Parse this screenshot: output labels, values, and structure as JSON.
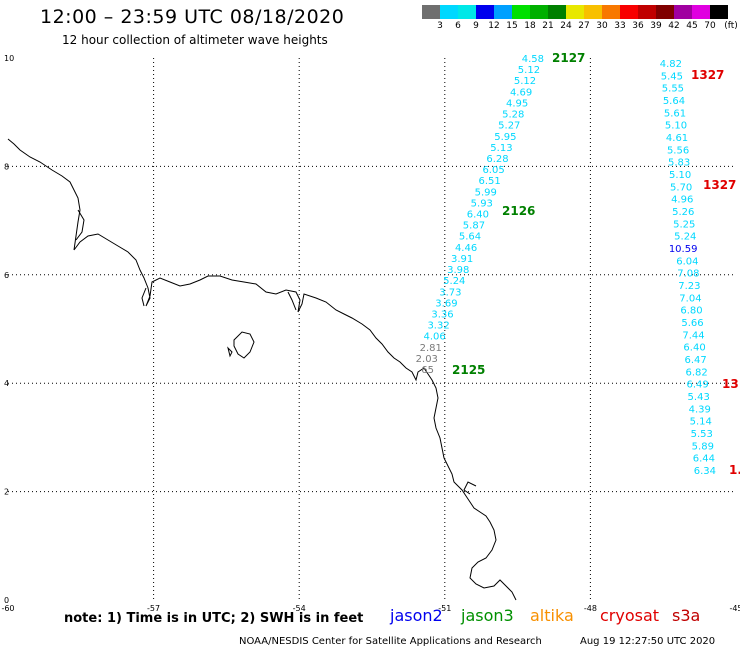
{
  "header": {
    "title": "12:00 – 23:59 UTC 08/18/2020",
    "subtitle": "12 hour collection of altimeter wave heights"
  },
  "scale": {
    "unit": "(ft)",
    "labels": [
      "3",
      "6",
      "9",
      "12",
      "15",
      "18",
      "21",
      "24",
      "27",
      "30",
      "33",
      "36",
      "39",
      "42",
      "45",
      "70"
    ],
    "colors": [
      "#6f6f6f",
      "#00d8ff",
      "#00e8e8",
      "#0000ee",
      "#00a0ff",
      "#00e000",
      "#00b000",
      "#008000",
      "#e8e800",
      "#f8c000",
      "#f87800",
      "#f80000",
      "#c00000",
      "#800000",
      "#a000a0",
      "#e000e0",
      "#000000"
    ]
  },
  "axes": {
    "x_ticks": [
      "-60",
      "-57",
      "-54",
      "-51",
      "-48",
      "-45"
    ],
    "y_ticks": [
      "0",
      "2",
      "4",
      "6",
      "8",
      "10"
    ]
  },
  "tracks": [
    {
      "name": "jason3",
      "color": "#00d8ff",
      "labels": [
        {
          "text": "2127",
          "color": "#008000"
        },
        {
          "text": "2126",
          "color": "#008000"
        },
        {
          "text": "2125",
          "color": "#008000"
        }
      ],
      "values": [
        "4.58",
        "5.12",
        "5.12",
        "4.69",
        "4.95",
        "5.28",
        "5.27",
        "5.95",
        "5.13",
        "6.28",
        "6.05",
        "6.51",
        "5.99",
        "5.93",
        "6.40",
        "5.87",
        "5.64",
        "4.46",
        "3.91",
        "3.98",
        "5.24",
        "3.73",
        "3.69",
        "3.36",
        "3.32",
        "4.06",
        "2.81",
        "2.03",
        "65"
      ]
    },
    {
      "name": "cryosat",
      "color": "#00d8ff",
      "labels": [
        {
          "text": "1327",
          "color": "#e00000"
        },
        {
          "text": "1327",
          "color": "#e00000"
        },
        {
          "text": "13",
          "color": "#e00000"
        },
        {
          "text": "1.",
          "color": "#e00000"
        }
      ],
      "values": [
        "4.82",
        "5.45",
        "5.55",
        "5.64",
        "5.61",
        "5.10",
        "4.61",
        "5.56",
        "5.83",
        "5.10",
        "5.70",
        "4.96",
        "5.26",
        "5.25",
        "5.24",
        "10.59",
        "6.04",
        "7.08",
        "7.23",
        "7.04",
        "6.80",
        "5.66",
        "7.44",
        "6.40",
        "6.47",
        "6.82",
        "6.49",
        "5.43",
        "4.39",
        "5.14",
        "5.53",
        "5.89",
        "6.44",
        "6.34"
      ]
    }
  ],
  "note": "note:  1) Time is in UTC;  2) SWH is in feet",
  "satellites": [
    {
      "name": "jason2",
      "color": "#0000ee"
    },
    {
      "name": "jason3",
      "color": "#009000"
    },
    {
      "name": "altika",
      "color": "#f89000"
    },
    {
      "name": "cryosat",
      "color": "#e00000"
    },
    {
      "name": "s3a",
      "color": "#c00000"
    }
  ],
  "footer": {
    "credit": "NOAA/NESDIS Center for Satellite Applications and Research",
    "timestamp": "Aug 19 12:27:50 UTC 2020"
  }
}
